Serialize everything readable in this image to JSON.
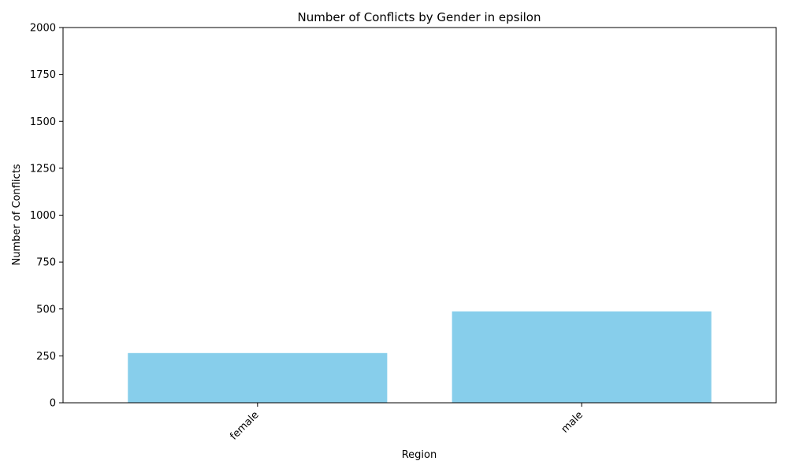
{
  "chart_data": {
    "type": "bar",
    "title": "Number of Conflicts by Gender in epsilon",
    "xlabel": "Region",
    "ylabel": "Number of Conflicts",
    "categories": [
      "female",
      "male"
    ],
    "values": [
      265,
      487
    ],
    "ylim": [
      0,
      2000
    ],
    "yticks": [
      0,
      250,
      500,
      750,
      1000,
      1250,
      1500,
      1750,
      2000
    ],
    "bar_color": "#87ceeb",
    "grid": false,
    "legend": "none"
  }
}
